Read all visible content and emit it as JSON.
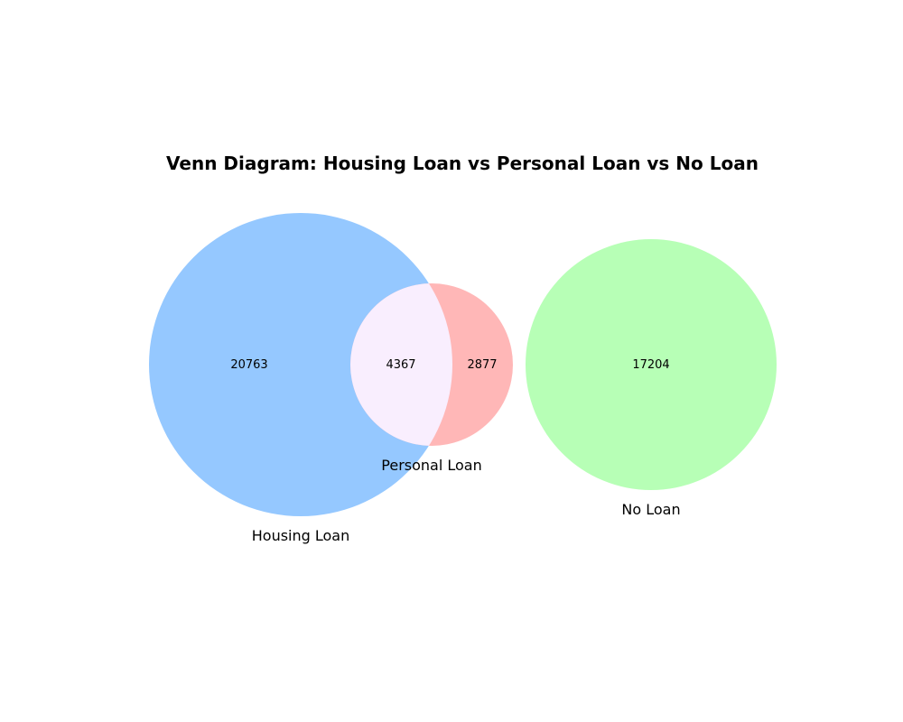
{
  "diagram": {
    "title": "Venn Diagram: Housing Loan vs Personal Loan vs No Loan",
    "sets": [
      {
        "key": "housing",
        "label": "Housing Loan",
        "color": "#95c8ff"
      },
      {
        "key": "personal",
        "label": "Personal Loan",
        "color": "#ffb7b7"
      },
      {
        "key": "none",
        "label": "No Loan",
        "color": "#b7ffb6"
      }
    ],
    "intersection_color": "#f9eefe",
    "regions": {
      "housing_only": "20763",
      "housing_and_personal": "4367",
      "personal_only": "2877",
      "no_loan": "17204"
    }
  }
}
